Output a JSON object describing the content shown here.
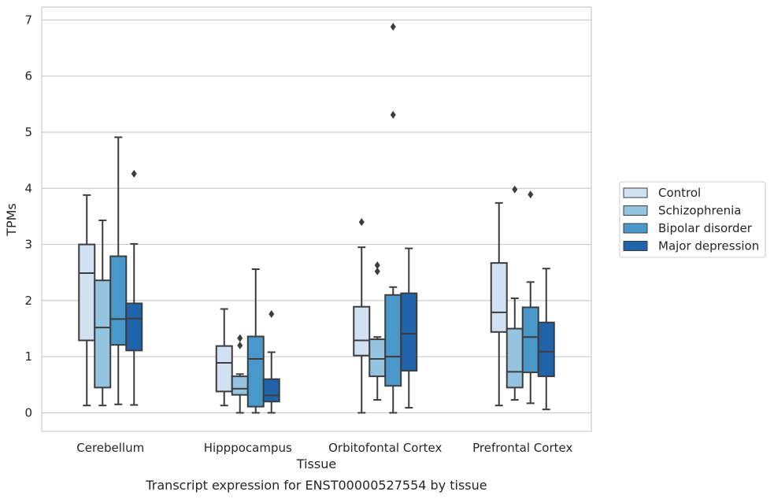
{
  "chart_data": {
    "type": "box",
    "title": "",
    "caption": "Transcript expression for ENST00000527554 by tissue",
    "xlabel": "Tissue",
    "ylabel": "TPMs",
    "ylim": [
      -0.33,
      7.23
    ],
    "yticks": [
      0,
      1,
      2,
      3,
      4,
      5,
      6,
      7
    ],
    "grid": true,
    "legend_position": "right",
    "categories": [
      "Cerebellum",
      "Hipppocampus",
      "Orbitofontal Cortex",
      "Prefrontal Cortex"
    ],
    "series": [
      {
        "name": "Control",
        "color": "#d0e1f2",
        "boxes": [
          {
            "whislo": 0.13,
            "q1": 1.29,
            "med": 2.49,
            "q3": 3.0,
            "whishi": 3.88,
            "fliers": []
          },
          {
            "whislo": 0.13,
            "q1": 0.38,
            "med": 0.89,
            "q3": 1.19,
            "whishi": 1.85,
            "fliers": []
          },
          {
            "whislo": 0.0,
            "q1": 1.02,
            "med": 1.29,
            "q3": 1.89,
            "whishi": 2.95,
            "fliers": [
              3.4
            ]
          },
          {
            "whislo": 0.13,
            "q1": 1.44,
            "med": 1.79,
            "q3": 2.67,
            "whishi": 3.74,
            "fliers": []
          }
        ]
      },
      {
        "name": "Schizophrenia",
        "color": "#94c4df",
        "boxes": [
          {
            "whislo": 0.13,
            "q1": 0.45,
            "med": 1.52,
            "q3": 2.36,
            "whishi": 3.43,
            "fliers": []
          },
          {
            "whislo": 0.0,
            "q1": 0.32,
            "med": 0.43,
            "q3": 0.65,
            "whishi": 0.69,
            "fliers": [
              1.2,
              1.33
            ]
          },
          {
            "whislo": 0.23,
            "q1": 0.65,
            "med": 0.96,
            "q3": 1.31,
            "whishi": 1.35,
            "fliers": [
              2.52,
              2.63
            ]
          },
          {
            "whislo": 0.23,
            "q1": 0.45,
            "med": 0.73,
            "q3": 1.5,
            "whishi": 2.04,
            "fliers": [
              3.98
            ]
          }
        ]
      },
      {
        "name": "Bipolar disorder",
        "color": "#4a98c9",
        "boxes": [
          {
            "whislo": 0.15,
            "q1": 1.21,
            "med": 1.67,
            "q3": 2.79,
            "whishi": 4.91,
            "fliers": []
          },
          {
            "whislo": 0.0,
            "q1": 0.11,
            "med": 0.96,
            "q3": 1.36,
            "whishi": 2.56,
            "fliers": []
          },
          {
            "whislo": 0.0,
            "q1": 0.48,
            "med": 1.0,
            "q3": 2.1,
            "whishi": 2.24,
            "fliers": [
              5.31,
              6.88
            ]
          },
          {
            "whislo": 0.17,
            "q1": 0.72,
            "med": 1.35,
            "q3": 1.88,
            "whishi": 2.33,
            "fliers": [
              3.89
            ]
          }
        ]
      },
      {
        "name": "Major depression",
        "color": "#2163aa",
        "boxes": [
          {
            "whislo": 0.14,
            "q1": 1.11,
            "med": 1.68,
            "q3": 1.95,
            "whishi": 3.01,
            "fliers": [
              4.26
            ]
          },
          {
            "whislo": 0.0,
            "q1": 0.2,
            "med": 0.31,
            "q3": 0.6,
            "whishi": 1.08,
            "fliers": [
              1.76
            ]
          },
          {
            "whislo": 0.09,
            "q1": 0.75,
            "med": 1.41,
            "q3": 2.13,
            "whishi": 2.93,
            "fliers": []
          },
          {
            "whislo": 0.06,
            "q1": 0.65,
            "med": 1.09,
            "q3": 1.61,
            "whishi": 2.57,
            "fliers": []
          }
        ]
      }
    ]
  }
}
